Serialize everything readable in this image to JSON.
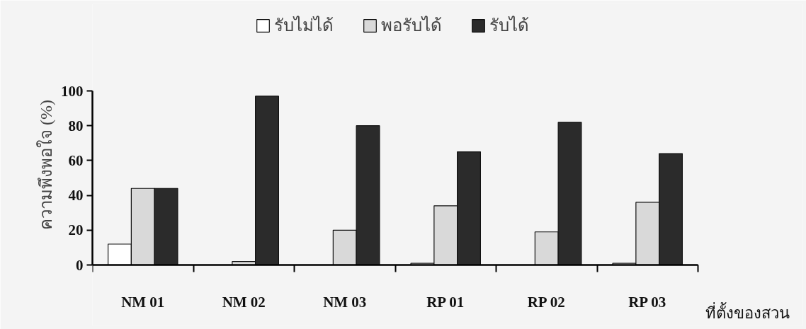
{
  "chart_data": {
    "type": "bar",
    "categories": [
      "NM 01",
      "NM 02",
      "NM 03",
      "RP 01",
      "RP 02",
      "RP 03"
    ],
    "series": [
      {
        "name": "รับไม่ได้",
        "color": "#ffffff",
        "values": [
          12,
          0,
          0,
          1,
          0,
          1
        ]
      },
      {
        "name": "พอรับได้",
        "color": "#d9d9d9",
        "values": [
          44,
          2,
          20,
          34,
          19,
          36
        ]
      },
      {
        "name": "รับได้",
        "color": "#2b2b2b",
        "values": [
          44,
          97,
          80,
          65,
          82,
          64
        ]
      }
    ],
    "xlabel": "ที่ตั้งของสวน",
    "ylabel": "ความพึงพอใจ (%)",
    "ylim": [
      0,
      100
    ],
    "yticks": [
      0,
      20,
      40,
      60,
      80,
      100
    ],
    "grid": false,
    "legend": "top"
  }
}
